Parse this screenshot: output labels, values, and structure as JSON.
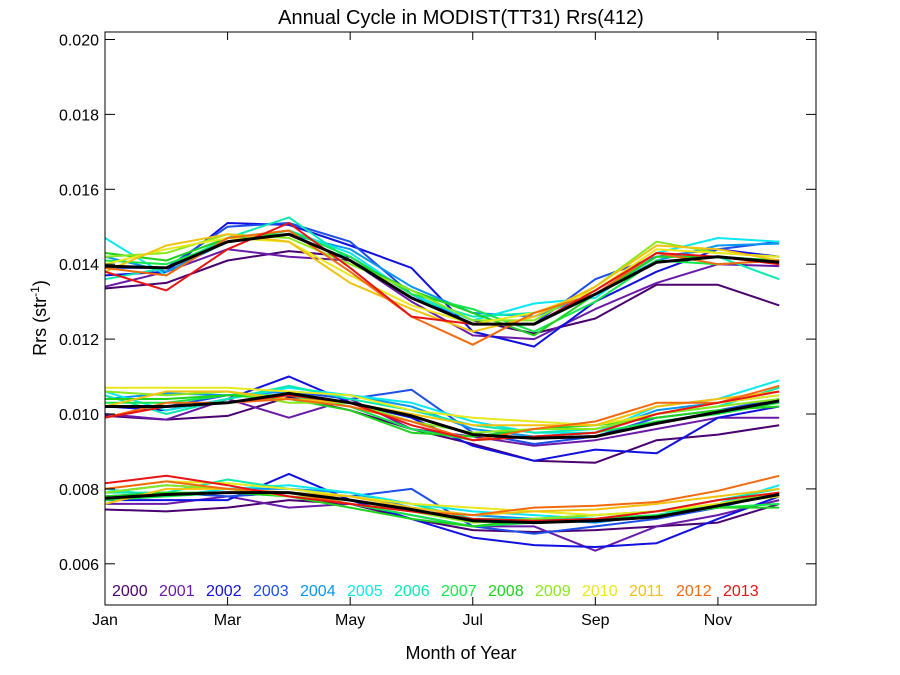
{
  "chart_data": {
    "type": "line",
    "title": "Annual Cycle in MODIST(TT31) Rrs(412)",
    "xlabel": "Month of Year",
    "ylabel": {
      "main": "Rrs (str",
      "sup": "-1",
      "close": ")"
    },
    "x": [
      1,
      2,
      3,
      4,
      5,
      6,
      7,
      8,
      9,
      10,
      11,
      12
    ],
    "xlim": [
      1,
      12.6
    ],
    "ylim": [
      0.0049,
      0.0202
    ],
    "x_ticks": [
      {
        "value": 1,
        "label": "Jan"
      },
      {
        "value": 3,
        "label": "Mar"
      },
      {
        "value": 5,
        "label": "May"
      },
      {
        "value": 7,
        "label": "Jul"
      },
      {
        "value": 9,
        "label": "Sep"
      },
      {
        "value": 11,
        "label": "Nov"
      }
    ],
    "y_ticks": [
      {
        "value": 0.006,
        "label": "0.006"
      },
      {
        "value": 0.008,
        "label": "0.008"
      },
      {
        "value": 0.01,
        "label": "0.010"
      },
      {
        "value": 0.012,
        "label": "0.012"
      },
      {
        "value": 0.014,
        "label": "0.014"
      },
      {
        "value": 0.016,
        "label": "0.016"
      },
      {
        "value": 0.018,
        "label": "0.018"
      },
      {
        "value": 0.02,
        "label": "0.020"
      }
    ],
    "grid": false,
    "legend_position": "bottom, inside plot",
    "legend": [
      {
        "label": "2000",
        "color": "#4a0070"
      },
      {
        "label": "2001",
        "color": "#6a1aa8"
      },
      {
        "label": "2002",
        "color": "#1010e0"
      },
      {
        "label": "2003",
        "color": "#1e4ee8"
      },
      {
        "label": "2004",
        "color": "#0a96f0"
      },
      {
        "label": "2005",
        "color": "#0ae8f0"
      },
      {
        "label": "2006",
        "color": "#0aeab0"
      },
      {
        "label": "2007",
        "color": "#12e84a"
      },
      {
        "label": "2008",
        "color": "#1ed21e"
      },
      {
        "label": "2009",
        "color": "#8ae81e"
      },
      {
        "label": "2010",
        "color": "#e8e81e"
      },
      {
        "label": "2011",
        "color": "#f2c210"
      },
      {
        "label": "2012",
        "color": "#f26a10"
      },
      {
        "label": "2013",
        "color": "#e81414"
      }
    ],
    "mean_color": "#000000",
    "groups": [
      {
        "series": [
          {
            "year": "2000",
            "values": [
              0.01335,
              0.0135,
              0.0141,
              0.01435,
              0.0142,
              0.0132,
              0.0125,
              0.01215,
              0.01255,
              0.01345,
              0.01345,
              0.0129
            ]
          },
          {
            "year": "2001",
            "values": [
              0.0134,
              0.0138,
              0.0144,
              0.0142,
              0.0141,
              0.013,
              0.0121,
              0.012,
              0.0128,
              0.0135,
              0.014,
              0.01395
            ]
          },
          {
            "year": "2002",
            "values": [
              0.0137,
              0.0138,
              0.0151,
              0.01505,
              0.0145,
              0.0139,
              0.0122,
              0.0118,
              0.013,
              0.0138,
              0.0144,
              0.0142
            ]
          },
          {
            "year": "2003",
            "values": [
              0.0139,
              0.0139,
              0.015,
              0.0151,
              0.0146,
              0.0132,
              0.0124,
              0.0124,
              0.0136,
              0.0142,
              0.0144,
              0.0146
            ]
          },
          {
            "year": "2004",
            "values": [
              0.0142,
              0.0138,
              0.0146,
              0.0148,
              0.0144,
              0.0134,
              0.0127,
              0.0126,
              0.0132,
              0.0141,
              0.0145,
              0.01455
            ]
          },
          {
            "year": "2005",
            "values": [
              0.0147,
              0.0137,
              0.0147,
              0.0149,
              0.0143,
              0.0132,
              0.0125,
              0.01295,
              0.0131,
              0.0143,
              0.0147,
              0.0146
            ]
          },
          {
            "year": "2006",
            "values": [
              0.0136,
              0.0139,
              0.0147,
              0.01525,
              0.0141,
              0.0131,
              0.0126,
              0.0127,
              0.0132,
              0.0142,
              0.0142,
              0.0136
            ]
          },
          {
            "year": "2007",
            "values": [
              0.0141,
              0.014,
              0.0146,
              0.0149,
              0.0142,
              0.0132,
              0.0128,
              0.0122,
              0.013,
              0.0141,
              0.014,
              0.0141
            ]
          },
          {
            "year": "2008",
            "values": [
              0.0143,
              0.0141,
              0.0147,
              0.0148,
              0.0141,
              0.0133,
              0.0127,
              0.0121,
              0.0132,
              0.0142,
              0.0142,
              0.0141
            ]
          },
          {
            "year": "2009",
            "values": [
              0.0142,
              0.0143,
              0.0148,
              0.0147,
              0.014,
              0.0133,
              0.0125,
              0.0125,
              0.0134,
              0.0146,
              0.0143,
              0.0142
            ]
          },
          {
            "year": "2010",
            "values": [
              0.014,
              0.0144,
              0.0147,
              0.0146,
              0.0137,
              0.0129,
              0.0124,
              0.0127,
              0.0133,
              0.0144,
              0.0143,
              0.0142
            ]
          },
          {
            "year": "2011",
            "values": [
              0.0138,
              0.0145,
              0.0148,
              0.0146,
              0.0135,
              0.0128,
              0.0122,
              0.0126,
              0.0134,
              0.0145,
              0.0144,
              0.0141
            ]
          },
          {
            "year": "2012",
            "values": [
              0.0139,
              0.0137,
              0.0147,
              0.0149,
              0.0138,
              0.0126,
              0.01185,
              0.0127,
              0.0132,
              0.0143,
              0.014,
              0.0141
            ]
          },
          {
            "year": "2013",
            "values": [
              0.0138,
              0.0133,
              0.0144,
              0.0151,
              0.0139,
              0.0126,
              0.0124,
              0.0124,
              0.0133,
              0.0143,
              0.0142,
              0.014
            ]
          }
        ],
        "mean": [
          0.01395,
          0.0139,
          0.0146,
          0.0148,
          0.0141,
          0.0131,
          0.0124,
          0.0124,
          0.0132,
          0.01405,
          0.0142,
          0.01405
        ]
      },
      {
        "series": [
          {
            "year": "2000",
            "values": [
              0.00995,
              0.00985,
              0.00995,
              0.01045,
              0.0101,
              0.0096,
              0.0092,
              0.00875,
              0.0087,
              0.0093,
              0.00945,
              0.0097
            ]
          },
          {
            "year": "2001",
            "values": [
              0.01,
              0.00985,
              0.0104,
              0.0099,
              0.0104,
              0.0096,
              0.0094,
              0.00915,
              0.0093,
              0.0096,
              0.0099,
              0.0099
            ]
          },
          {
            "year": "2002",
            "values": [
              0.0102,
              0.0101,
              0.0104,
              0.011,
              0.0103,
              0.0099,
              0.00915,
              0.00875,
              0.00905,
              0.00895,
              0.0099,
              0.0102
            ]
          },
          {
            "year": "2003",
            "values": [
              0.0102,
              0.0102,
              0.0105,
              0.0106,
              0.0104,
              0.01065,
              0.0095,
              0.0092,
              0.0094,
              0.0099,
              0.0101,
              0.0104
            ]
          },
          {
            "year": "2004",
            "values": [
              0.0104,
              0.01055,
              0.0105,
              0.0106,
              0.0105,
              0.0102,
              0.0096,
              0.0094,
              0.0095,
              0.0101,
              0.0103,
              0.0105
            ]
          },
          {
            "year": "2005",
            "values": [
              0.0106,
              0.0101,
              0.0104,
              0.0107,
              0.0105,
              0.0103,
              0.0098,
              0.0095,
              0.0095,
              0.0102,
              0.0104,
              0.0109
            ]
          },
          {
            "year": "2006",
            "values": [
              0.0105,
              0.01,
              0.0104,
              0.01075,
              0.0104,
              0.0101,
              0.0097,
              0.0095,
              0.0096,
              0.01,
              0.0102,
              0.0107
            ]
          },
          {
            "year": "2007",
            "values": [
              0.0103,
              0.0103,
              0.0105,
              0.0105,
              0.0102,
              0.0096,
              0.0093,
              0.0094,
              0.0095,
              0.0098,
              0.01,
              0.0103
            ]
          },
          {
            "year": "2008",
            "values": [
              0.0104,
              0.0104,
              0.0105,
              0.0104,
              0.0101,
              0.0095,
              0.0094,
              0.0096,
              0.0097,
              0.0099,
              0.0101,
              0.0102
            ]
          },
          {
            "year": "2009",
            "values": [
              0.0106,
              0.0105,
              0.0106,
              0.0103,
              0.0103,
              0.0098,
              0.0095,
              0.0096,
              0.0096,
              0.01,
              0.0102,
              0.0104
            ]
          },
          {
            "year": "2010",
            "values": [
              0.0107,
              0.0107,
              0.0107,
              0.0106,
              0.0105,
              0.0101,
              0.0099,
              0.0098,
              0.0097,
              0.01,
              0.0103,
              0.0105
            ]
          },
          {
            "year": "2011",
            "values": [
              0.0102,
              0.0106,
              0.0106,
              0.0104,
              0.0103,
              0.01,
              0.0097,
              0.0097,
              0.0097,
              0.0102,
              0.0104,
              0.0106
            ]
          },
          {
            "year": "2012",
            "values": [
              0.0099,
              0.0103,
              0.0103,
              0.0104,
              0.0102,
              0.0098,
              0.0093,
              0.0096,
              0.0098,
              0.0103,
              0.0103,
              0.01075
            ]
          },
          {
            "year": "2013",
            "values": [
              0.0099,
              0.0102,
              0.0103,
              0.0105,
              0.0103,
              0.0097,
              0.0093,
              0.0094,
              0.0095,
              0.01,
              0.0103,
              0.0106
            ]
          }
        ],
        "mean": [
          0.0102,
          0.0102,
          0.0103,
          0.01055,
          0.0103,
          0.00995,
          0.00945,
          0.00935,
          0.0094,
          0.00975,
          0.01005,
          0.01035
        ]
      },
      {
        "series": [
          {
            "year": "2000",
            "values": [
              0.00745,
              0.0074,
              0.0075,
              0.0077,
              0.0076,
              0.0072,
              0.0069,
              0.00685,
              0.0069,
              0.007,
              0.0071,
              0.0076
            ]
          },
          {
            "year": "2001",
            "values": [
              0.0076,
              0.0076,
              0.0078,
              0.0075,
              0.0076,
              0.0073,
              0.007,
              0.007,
              0.00635,
              0.007,
              0.0073,
              0.0077
            ]
          },
          {
            "year": "2002",
            "values": [
              0.0077,
              0.0077,
              0.0077,
              0.0084,
              0.0077,
              0.0072,
              0.0067,
              0.0065,
              0.00645,
              0.00655,
              0.0072,
              0.0078
            ]
          },
          {
            "year": "2003",
            "values": [
              0.0078,
              0.0079,
              0.0078,
              0.0079,
              0.0078,
              0.008,
              0.007,
              0.0068,
              0.007,
              0.0072,
              0.0075,
              0.0079
            ]
          },
          {
            "year": "2004",
            "values": [
              0.0079,
              0.0081,
              0.008,
              0.008,
              0.0079,
              0.0075,
              0.0073,
              0.0072,
              0.0071,
              0.0073,
              0.0076,
              0.0079
            ]
          },
          {
            "year": "2005",
            "values": [
              0.008,
              0.0078,
              0.008,
              0.0081,
              0.0079,
              0.0076,
              0.0074,
              0.0073,
              0.0072,
              0.0073,
              0.0076,
              0.0081
            ]
          },
          {
            "year": "2006",
            "values": [
              0.0079,
              0.0079,
              0.00825,
              0.008,
              0.0078,
              0.0076,
              0.0072,
              0.0072,
              0.0072,
              0.0074,
              0.0077,
              0.008
            ]
          },
          {
            "year": "2007",
            "values": [
              0.0077,
              0.0078,
              0.0079,
              0.0079,
              0.0076,
              0.0073,
              0.007,
              0.0071,
              0.0072,
              0.0073,
              0.0075,
              0.0076
            ]
          },
          {
            "year": "2008",
            "values": [
              0.0078,
              0.0079,
              0.0079,
              0.0078,
              0.0075,
              0.0072,
              0.007,
              0.0072,
              0.0073,
              0.0074,
              0.0075,
              0.0075
            ]
          },
          {
            "year": "2009",
            "values": [
              0.0079,
              0.0081,
              0.008,
              0.0078,
              0.0077,
              0.0074,
              0.0071,
              0.0072,
              0.0073,
              0.0074,
              0.0076,
              0.0079
            ]
          },
          {
            "year": "2010",
            "values": [
              0.008,
              0.0082,
              0.00815,
              0.008,
              0.0078,
              0.0076,
              0.0075,
              0.0074,
              0.0073,
              0.0074,
              0.0076,
              0.0078
            ]
          },
          {
            "year": "2011",
            "values": [
              0.0076,
              0.008,
              0.008,
              0.0079,
              0.0078,
              0.0075,
              0.0073,
              0.0074,
              0.00745,
              0.0076,
              0.0078,
              0.008
            ]
          },
          {
            "year": "2012",
            "values": [
              0.008,
              0.0082,
              0.008,
              0.0079,
              0.0076,
              0.0074,
              0.0073,
              0.0075,
              0.00755,
              0.00765,
              0.00795,
              0.00835
            ]
          },
          {
            "year": "2013",
            "values": [
              0.00815,
              0.00835,
              0.0081,
              0.0078,
              0.0076,
              0.0074,
              0.0072,
              0.00715,
              0.0072,
              0.0074,
              0.0077,
              0.0079
            ]
          }
        ],
        "mean": [
          0.00775,
          0.00785,
          0.0079,
          0.0079,
          0.0077,
          0.00745,
          0.00715,
          0.0071,
          0.00715,
          0.00725,
          0.00755,
          0.00785
        ]
      }
    ]
  }
}
